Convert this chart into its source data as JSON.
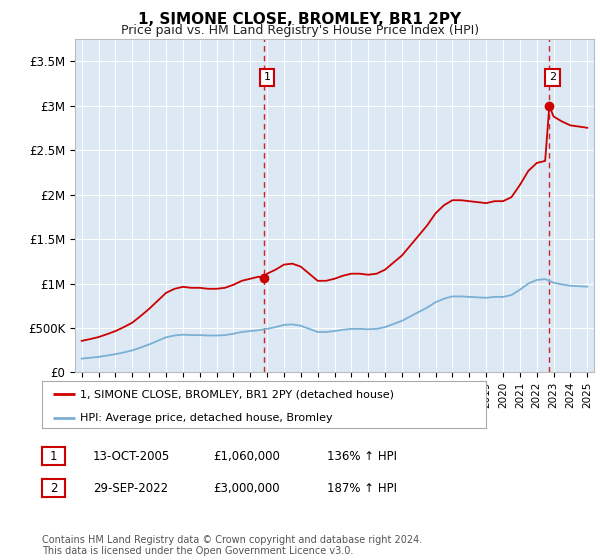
{
  "title": "1, SIMONE CLOSE, BROMLEY, BR1 2PY",
  "subtitle": "Price paid vs. HM Land Registry's House Price Index (HPI)",
  "legend_line1": "1, SIMONE CLOSE, BROMLEY, BR1 2PY (detached house)",
  "legend_line2": "HPI: Average price, detached house, Bromley",
  "annotation1_date": "13-OCT-2005",
  "annotation1_price": "£1,060,000",
  "annotation1_hpi": "136% ↑ HPI",
  "annotation2_date": "29-SEP-2022",
  "annotation2_price": "£3,000,000",
  "annotation2_hpi": "187% ↑ HPI",
  "footnote": "Contains HM Land Registry data © Crown copyright and database right 2024.\nThis data is licensed under the Open Government Licence v3.0.",
  "plot_bg_color": "#dce9f5",
  "red_line_color": "#cc0000",
  "blue_line_color": "#7bafd4",
  "dashed_line_color": "#cc0000",
  "ylim": [
    0,
    3750000
  ],
  "yticks": [
    0,
    500000,
    1000000,
    1500000,
    2000000,
    2500000,
    3000000,
    3500000
  ],
  "ytick_labels": [
    "£0",
    "£500K",
    "£1M",
    "£1.5M",
    "£2M",
    "£2.5M",
    "£3M",
    "£3.5M"
  ],
  "sale1_year": 2005.79,
  "sale1_price": 1060000,
  "sale2_year": 2022.75,
  "sale2_price": 3000000,
  "hpi_years": [
    1995,
    1995.5,
    1996,
    1996.5,
    1997,
    1997.5,
    1998,
    1998.5,
    1999,
    1999.5,
    2000,
    2000.5,
    2001,
    2001.5,
    2002,
    2002.5,
    2003,
    2003.5,
    2004,
    2004.5,
    2005,
    2005.5,
    2006,
    2006.5,
    2007,
    2007.5,
    2008,
    2008.5,
    2009,
    2009.5,
    2010,
    2010.5,
    2011,
    2011.5,
    2012,
    2012.5,
    2013,
    2013.5,
    2014,
    2014.5,
    2015,
    2015.5,
    2016,
    2016.5,
    2017,
    2017.5,
    2018,
    2018.5,
    2019,
    2019.5,
    2020,
    2020.5,
    2021,
    2021.5,
    2022,
    2022.5,
    2023,
    2023.5,
    2024,
    2024.5,
    2025
  ],
  "hpi_values": [
    155000,
    165000,
    175000,
    190000,
    205000,
    225000,
    248000,
    280000,
    315000,
    355000,
    395000,
    415000,
    425000,
    420000,
    420000,
    415000,
    415000,
    420000,
    435000,
    455000,
    465000,
    475000,
    490000,
    510000,
    535000,
    540000,
    525000,
    490000,
    455000,
    455000,
    465000,
    480000,
    490000,
    490000,
    485000,
    490000,
    510000,
    545000,
    580000,
    630000,
    680000,
    730000,
    790000,
    830000,
    855000,
    855000,
    850000,
    845000,
    840000,
    850000,
    850000,
    870000,
    930000,
    1000000,
    1040000,
    1050000,
    1010000,
    990000,
    975000,
    970000,
    965000
  ],
  "prop_years": [
    1995,
    1995.5,
    1996,
    1996.5,
    1997,
    1997.5,
    1998,
    1998.5,
    1999,
    1999.5,
    2000,
    2000.5,
    2001,
    2001.5,
    2002,
    2002.5,
    2003,
    2003.5,
    2004,
    2004.5,
    2005,
    2005.5,
    2005.79,
    2006,
    2006.5,
    2007,
    2007.5,
    2008,
    2008.5,
    2009,
    2009.5,
    2010,
    2010.5,
    2011,
    2011.5,
    2012,
    2012.5,
    2013,
    2013.5,
    2014,
    2014.5,
    2015,
    2015.5,
    2016,
    2016.5,
    2017,
    2017.5,
    2018,
    2018.5,
    2019,
    2019.5,
    2020,
    2020.5,
    2021,
    2021.5,
    2022,
    2022.5,
    2022.75,
    2023,
    2023.5,
    2024,
    2024.5,
    2025
  ],
  "prop_values": [
    355000,
    375000,
    398000,
    430000,
    465000,
    510000,
    560000,
    635000,
    715000,
    805000,
    895000,
    940000,
    963000,
    952000,
    952000,
    941000,
    941000,
    952000,
    986000,
    1031000,
    1054000,
    1077000,
    1060000,
    1111000,
    1156000,
    1213000,
    1224000,
    1190000,
    1111000,
    1031000,
    1031000,
    1054000,
    1088000,
    1111000,
    1111000,
    1099000,
    1111000,
    1156000,
    1236000,
    1315000,
    1428000,
    1541000,
    1655000,
    1791000,
    1882000,
    1938000,
    1938000,
    1927000,
    1916000,
    1905000,
    1927000,
    1927000,
    1972000,
    2109000,
    2267000,
    2357000,
    2380000,
    3000000,
    2880000,
    2824000,
    2780000,
    2767000,
    2753000
  ]
}
